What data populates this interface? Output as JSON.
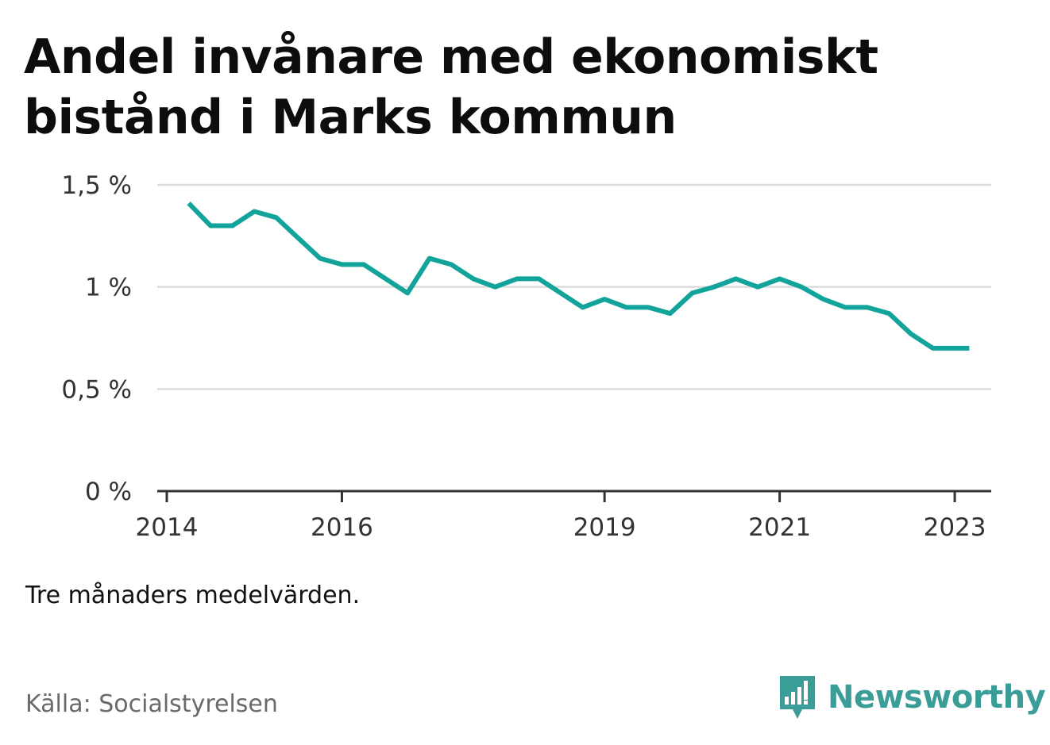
{
  "title": "Andel invånare med ekonomiskt bistånd i Marks kommun",
  "note": "Tre månaders medelvärden.",
  "source": "Källa: Socialstyrelsen",
  "brand": {
    "name": "Newsworthy",
    "color": "#3a9d98",
    "icon": "bar-chart-speech-bubble-icon"
  },
  "chart_data": {
    "type": "line",
    "title": "Andel invånare med ekonomiskt bistånd i Marks kommun",
    "xlabel": "",
    "ylabel": "",
    "x_ticks": [
      "2014",
      "2016",
      "2019",
      "2021",
      "2023"
    ],
    "y_ticks": [
      "0 %",
      "0,5 %",
      "1 %",
      "1,5 %"
    ],
    "ylim": [
      0,
      1.5
    ],
    "xlim": [
      "2014-01",
      "2023-06"
    ],
    "grid": true,
    "line_color": "#12a39a",
    "series": [
      {
        "x": [
          "2014-04",
          "2014-07",
          "2014-10",
          "2015-01",
          "2015-04",
          "2015-07",
          "2015-10",
          "2016-01",
          "2016-04",
          "2016-07",
          "2016-10",
          "2017-01",
          "2017-04",
          "2017-07",
          "2017-10",
          "2018-01",
          "2018-04",
          "2018-07",
          "2018-10",
          "2019-01",
          "2019-04",
          "2019-07",
          "2019-10",
          "2020-01",
          "2020-04",
          "2020-07",
          "2020-10",
          "2021-01",
          "2021-04",
          "2021-07",
          "2021-10",
          "2022-01",
          "2022-04",
          "2022-07",
          "2022-10",
          "2023-01",
          "2023-03"
        ],
        "values": [
          1.41,
          1.3,
          1.3,
          1.37,
          1.34,
          1.24,
          1.14,
          1.11,
          1.11,
          1.04,
          0.97,
          1.14,
          1.11,
          1.04,
          1.0,
          1.04,
          1.04,
          0.97,
          0.9,
          0.94,
          0.9,
          0.9,
          0.87,
          0.97,
          1.0,
          1.04,
          1.0,
          1.04,
          1.0,
          0.94,
          0.9,
          0.9,
          0.87,
          0.77,
          0.7,
          0.7,
          0.7
        ]
      }
    ]
  }
}
